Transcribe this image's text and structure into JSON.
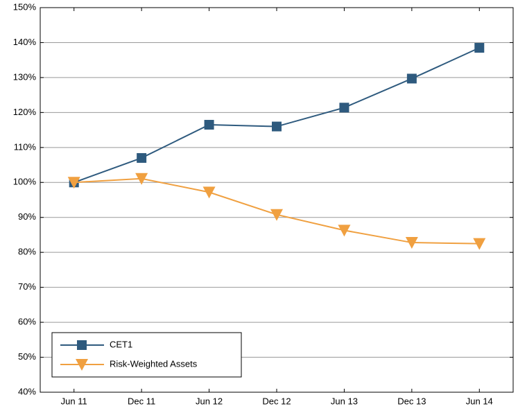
{
  "chart_data": {
    "type": "line",
    "categories": [
      "Jun 11",
      "Dec 11",
      "Jun 12",
      "Dec 12",
      "Jun 13",
      "Dec 13",
      "Jun 14"
    ],
    "series": [
      {
        "name": "CET1",
        "color": "#2e5a7e",
        "marker": "square",
        "values": [
          100,
          107,
          116.5,
          116,
          121.4,
          129.7,
          138.5
        ]
      },
      {
        "name": "Risk-Weighted Assets",
        "color": "#f0a040",
        "marker": "triangle-down",
        "values": [
          100,
          101.1,
          97.2,
          90.8,
          86.3,
          82.8,
          82.5
        ]
      }
    ],
    "ylim": [
      40,
      150
    ],
    "yticks": [
      {
        "value": 40,
        "label": "40%"
      },
      {
        "value": 50,
        "label": "50%"
      },
      {
        "value": 60,
        "label": "60%"
      },
      {
        "value": 70,
        "label": "70%"
      },
      {
        "value": 80,
        "label": "80%"
      },
      {
        "value": 90,
        "label": "90%"
      },
      {
        "value": 100,
        "label": "100%"
      },
      {
        "value": 110,
        "label": "110%"
      },
      {
        "value": 120,
        "label": "120%"
      },
      {
        "value": 130,
        "label": "130%"
      },
      {
        "value": 140,
        "label": "140%"
      },
      {
        "value": 150,
        "label": "150%"
      }
    ],
    "grid": true,
    "legend": "lower left"
  }
}
